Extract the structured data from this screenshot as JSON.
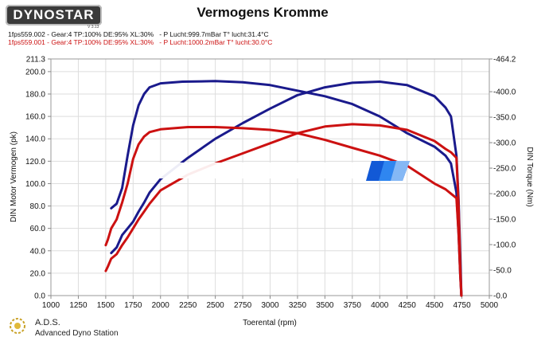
{
  "header": {
    "logo_text": "DYNOSTAR",
    "logo_sub": "V 3.13",
    "title": "Vermogens Kromme",
    "run_info": [
      {
        "text": "1fps559.002 - Gear:4 TP:100% DE:95% XL:30%   - P Lucht:999.7mBar T° lucht:31.4°C",
        "color": "#111111"
      },
      {
        "text": "1fps559.001 - Gear:4 TP:100% DE:95% XL:30%   - P Lucht:1000.2mBar T° lucht:30.0°C",
        "color": "#cc1111"
      }
    ]
  },
  "footer": {
    "name": "A.D.S.",
    "subtitle": "Advanced Dyno Station"
  },
  "chart_data": {
    "type": "line",
    "xlabel": "Toerental (rpm)",
    "ylabel_left": "DIN Motor Vermogen (pk)",
    "ylabel_right": "DIN Torque (Nm)",
    "xlim": [
      1000,
      5000
    ],
    "x_ticks": [
      "1000",
      "1250",
      "1500",
      "1750",
      "2000",
      "2250",
      "2500",
      "2750",
      "3000",
      "3250",
      "3500",
      "3750",
      "4000",
      "4250",
      "4500",
      "4750",
      "5000"
    ],
    "ylim_left": [
      0,
      211.3
    ],
    "y_left_ticks": [
      "0.0",
      "20.0",
      "40.0",
      "60.0",
      "80.0",
      "100.0",
      "120.0",
      "140.0",
      "160.0",
      "180.0",
      "200.0",
      "211.3"
    ],
    "ylim_right": [
      0,
      464.2
    ],
    "y_right_ticks": [
      "-0.0",
      "-50.0",
      "-100.0",
      "-150.0",
      "-200.0",
      "-250.0",
      "-300.0",
      "-350.0",
      "-400.0",
      "-464.2"
    ],
    "grid": true,
    "series": [
      {
        "axis": "left",
        "color": "#1a1a8c",
        "points": [
          [
            1550,
            78
          ],
          [
            1600,
            82
          ],
          [
            1650,
            96
          ],
          [
            1700,
            125
          ],
          [
            1750,
            152
          ],
          [
            1800,
            170
          ],
          [
            1850,
            180
          ],
          [
            1900,
            186
          ],
          [
            2000,
            189.5
          ],
          [
            2200,
            191
          ],
          [
            2500,
            191.5
          ],
          [
            2750,
            190.5
          ],
          [
            3000,
            188
          ],
          [
            3250,
            183
          ],
          [
            3500,
            178
          ],
          [
            3750,
            171
          ],
          [
            4000,
            160
          ],
          [
            4250,
            145
          ],
          [
            4500,
            133
          ],
          [
            4600,
            125
          ],
          [
            4650,
            118
          ],
          [
            4700,
            92
          ],
          [
            4720,
            55
          ],
          [
            4735,
            18
          ],
          [
            4745,
            0
          ]
        ]
      },
      {
        "axis": "left",
        "color": "#1a1a8c",
        "points": [
          [
            1550,
            38
          ],
          [
            1600,
            43
          ],
          [
            1650,
            54
          ],
          [
            1700,
            60
          ],
          [
            1750,
            66
          ],
          [
            1800,
            75
          ],
          [
            1850,
            83
          ],
          [
            1900,
            92
          ],
          [
            2000,
            104
          ],
          [
            2250,
            123
          ],
          [
            2500,
            140
          ],
          [
            2750,
            154
          ],
          [
            3000,
            167
          ],
          [
            3250,
            179
          ],
          [
            3500,
            186
          ],
          [
            3750,
            190
          ],
          [
            4000,
            191
          ],
          [
            4250,
            188
          ],
          [
            4500,
            178
          ],
          [
            4600,
            168
          ],
          [
            4650,
            160
          ],
          [
            4700,
            125
          ],
          [
            4720,
            85
          ],
          [
            4735,
            35
          ],
          [
            4745,
            0
          ]
        ]
      },
      {
        "axis": "left",
        "color": "#cc1111",
        "points": [
          [
            1500,
            45
          ],
          [
            1520,
            50
          ],
          [
            1550,
            60
          ],
          [
            1600,
            68
          ],
          [
            1650,
            83
          ],
          [
            1700,
            100
          ],
          [
            1750,
            122
          ],
          [
            1800,
            135
          ],
          [
            1850,
            142
          ],
          [
            1900,
            146
          ],
          [
            2000,
            148.5
          ],
          [
            2250,
            150.5
          ],
          [
            2500,
            150.5
          ],
          [
            2750,
            149.5
          ],
          [
            3000,
            148
          ],
          [
            3250,
            145
          ],
          [
            3500,
            139
          ],
          [
            3750,
            132
          ],
          [
            4000,
            125
          ],
          [
            4250,
            116
          ],
          [
            4500,
            100
          ],
          [
            4600,
            95
          ],
          [
            4650,
            91
          ],
          [
            4700,
            87
          ],
          [
            4720,
            55
          ],
          [
            4735,
            18
          ],
          [
            4745,
            0
          ]
        ]
      },
      {
        "axis": "left",
        "color": "#cc1111",
        "points": [
          [
            1500,
            22
          ],
          [
            1520,
            26
          ],
          [
            1550,
            33
          ],
          [
            1600,
            37
          ],
          [
            1650,
            45
          ],
          [
            1700,
            52
          ],
          [
            1750,
            60
          ],
          [
            1800,
            68
          ],
          [
            1850,
            75
          ],
          [
            1900,
            82
          ],
          [
            2000,
            94
          ],
          [
            2250,
            108
          ],
          [
            2500,
            118
          ],
          [
            2750,
            127
          ],
          [
            3000,
            136
          ],
          [
            3250,
            145
          ],
          [
            3500,
            151
          ],
          [
            3750,
            153
          ],
          [
            4000,
            152
          ],
          [
            4250,
            148
          ],
          [
            4500,
            138
          ],
          [
            4600,
            131
          ],
          [
            4650,
            128
          ],
          [
            4700,
            123
          ],
          [
            4720,
            80
          ],
          [
            4735,
            25
          ],
          [
            4745,
            0
          ]
        ]
      }
    ]
  }
}
